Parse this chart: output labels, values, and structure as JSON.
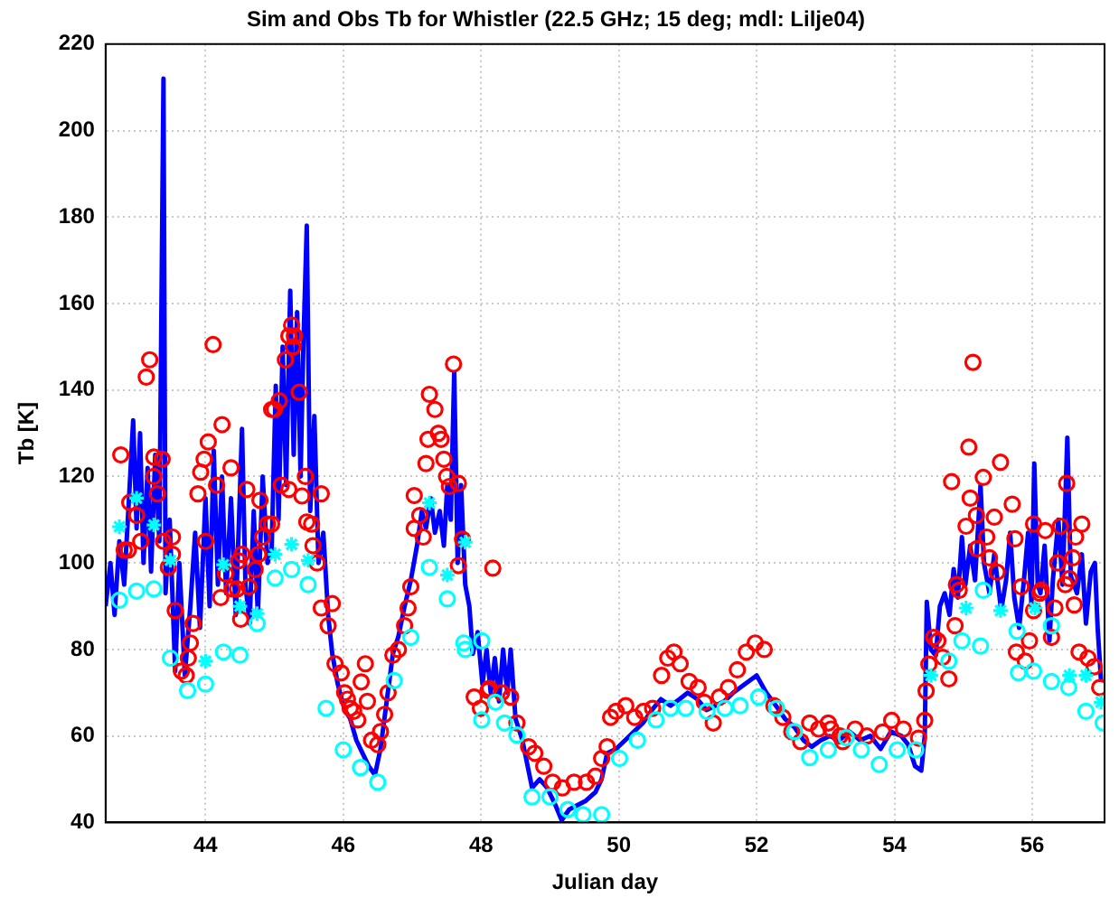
{
  "chart_data": {
    "type": "scatter",
    "title": "Sim and Obs Tb for Whistler (22.5 GHz; 15 deg; mdl: Lilje04)",
    "xlabel": "Julian day",
    "ylabel": "Tb [K]",
    "xlim": [
      42.55,
      57.05
    ],
    "xticks": [
      44,
      46,
      48,
      50,
      52,
      54,
      56
    ],
    "ylim": [
      40,
      220
    ],
    "yticks": [
      40,
      60,
      80,
      100,
      120,
      140,
      160,
      180,
      200,
      220
    ],
    "grid": true,
    "legend": false,
    "series": [
      {
        "type": "line",
        "color": "#0000ff",
        "line_style": "solid",
        "marker": "none",
        "x": [
          42.55,
          42.62,
          42.68,
          42.75,
          42.82,
          42.9,
          42.95,
          43.0,
          43.05,
          43.1,
          43.16,
          43.21,
          43.27,
          43.33,
          43.39,
          43.42,
          43.48,
          43.56,
          43.62,
          43.7,
          43.78,
          43.85,
          43.92,
          44.0,
          44.06,
          44.12,
          44.18,
          44.24,
          44.3,
          44.37,
          44.44,
          44.53,
          44.58,
          44.64,
          44.7,
          44.76,
          44.83,
          44.9,
          44.96,
          45.02,
          45.06,
          45.12,
          45.17,
          45.23,
          45.28,
          45.33,
          45.38,
          45.42,
          45.47,
          45.52,
          45.58,
          45.64,
          45.71,
          45.78,
          45.84,
          45.92,
          46.02,
          46.1,
          46.19,
          46.28,
          46.37,
          46.46,
          46.54,
          46.63,
          46.72,
          46.8,
          46.89,
          46.98,
          47.07,
          47.14,
          47.2,
          47.27,
          47.33,
          47.4,
          47.46,
          47.51,
          47.56,
          47.61,
          47.66,
          47.71,
          47.77,
          47.83,
          47.88,
          47.95,
          48.02,
          48.08,
          48.14,
          48.2,
          48.26,
          48.32,
          48.38,
          48.43,
          48.5,
          48.6,
          48.74,
          48.85,
          48.96,
          49.08,
          49.17,
          49.28,
          49.4,
          49.52,
          49.66,
          49.75,
          49.83,
          49.96,
          50.09,
          50.22,
          50.35,
          50.48,
          50.61,
          50.75,
          50.88,
          51.0,
          51.14,
          51.27,
          51.4,
          51.53,
          51.66,
          51.83,
          52.0,
          52.14,
          52.28,
          52.41,
          52.55,
          52.68,
          52.8,
          52.93,
          53.06,
          53.2,
          53.35,
          53.5,
          53.65,
          53.8,
          53.95,
          54.1,
          54.2,
          54.3,
          54.39,
          54.44,
          54.47,
          54.53,
          54.6,
          54.66,
          54.73,
          54.8,
          54.86,
          54.92,
          54.98,
          55.03,
          55.1,
          55.17,
          55.25,
          55.3,
          55.38,
          55.45,
          55.55,
          55.62,
          55.68,
          55.74,
          55.81,
          55.88,
          55.94,
          55.99,
          56.03,
          56.08,
          56.12,
          56.18,
          56.25,
          56.3,
          56.38,
          56.44,
          56.51,
          56.56,
          56.65,
          56.72,
          56.78,
          56.85,
          56.91,
          56.95,
          57.0
        ],
        "values": [
          90,
          100,
          88,
          105,
          95,
          118,
          133,
          108,
          130,
          100,
          122,
          98,
          125,
          105,
          212,
          93,
          110,
          75,
          100,
          74,
          90,
          107,
          85,
          115,
          90,
          126,
          95,
          120,
          93,
          115,
          88,
          131,
          95,
          86,
          112,
          88,
          120,
          100,
          103,
          141,
          110,
          150,
          118,
          163,
          125,
          158,
          120,
          150,
          178,
          112,
          134,
          100,
          107,
          88,
          79,
          72,
          66,
          64,
          59,
          56,
          53,
          51,
          57,
          68,
          79,
          83,
          90,
          96,
          104,
          112,
          108,
          115,
          107,
          112,
          104,
          118,
          110,
          144,
          100,
          118,
          95,
          90,
          79,
          84,
          72,
          80,
          70,
          78,
          68,
          80,
          70,
          80,
          64,
          59,
          48,
          50,
          48,
          44,
          40.5,
          43,
          44,
          45,
          47,
          50,
          56,
          57,
          59,
          61,
          63,
          66,
          68.5,
          67,
          68.5,
          70,
          68.5,
          66,
          67,
          68,
          70,
          72,
          74,
          70,
          67,
          64,
          62,
          59,
          57.5,
          59,
          60,
          59,
          61,
          59,
          60,
          57,
          61,
          60,
          58,
          53,
          52,
          60,
          91,
          80,
          78.6,
          90,
          93,
          88,
          98.6,
          92,
          106,
          95,
          104,
          96,
          118,
          100,
          93,
          102,
          89,
          96,
          107,
          92,
          85,
          96,
          107,
          90,
          123,
          95,
          93,
          104,
          82,
          96,
          110,
          95,
          129,
          97,
          93,
          102,
          86,
          98,
          100,
          85,
          72.5
        ]
      },
      {
        "type": "scatter",
        "color": "#ff0000",
        "marker": "circle",
        "x": [
          42.77,
          42.82,
          42.88,
          42.9,
          43.0,
          43.06,
          43.14,
          43.19,
          43.25,
          43.25,
          43.3,
          43.37,
          43.39,
          43.46,
          43.52,
          43.52,
          43.56,
          43.65,
          43.72,
          43.75,
          43.78,
          43.82,
          43.89,
          43.93,
          43.98,
          44.0,
          44.04,
          44.11,
          44.16,
          44.22,
          44.24,
          44.29,
          44.37,
          44.39,
          44.46,
          44.48,
          44.51,
          44.53,
          44.6,
          44.63,
          44.72,
          44.77,
          44.79,
          44.83,
          44.9,
          44.96,
          44.96,
          45.0,
          45.07,
          45.1,
          45.16,
          45.21,
          45.25,
          45.27,
          45.29,
          45.36,
          45.21,
          45.45,
          45.4,
          45.47,
          45.54,
          45.56,
          45.62,
          45.68,
          45.68,
          45.78,
          45.84,
          45.88,
          45.97,
          46.02,
          46.06,
          46.1,
          46.15,
          46.21,
          46.26,
          46.32,
          46.35,
          46.41,
          46.5,
          46.54,
          46.6,
          46.65,
          46.72,
          46.8,
          46.89,
          46.94,
          46.98,
          47.03,
          47.03,
          47.11,
          47.16,
          47.2,
          47.23,
          47.25,
          47.33,
          47.38,
          47.42,
          47.46,
          47.5,
          47.54,
          47.6,
          47.67,
          47.67,
          47.73,
          47.9,
          47.99,
          48.1,
          48.17,
          48.12,
          48.3,
          48.43,
          48.52,
          48.69,
          48.78,
          48.91,
          49.04,
          49.18,
          49.35,
          49.53,
          49.66,
          49.75,
          49.83,
          49.88,
          49.96,
          50.1,
          50.23,
          50.36,
          50.49,
          50.62,
          50.71,
          50.8,
          50.89,
          51.02,
          51.15,
          51.24,
          51.37,
          51.46,
          51.59,
          51.72,
          51.85,
          51.98,
          52.11,
          52.25,
          52.38,
          52.51,
          52.64,
          52.77,
          52.9,
          53.04,
          53.21,
          53.08,
          53.25,
          53.43,
          53.6,
          53.83,
          53.96,
          54.13,
          54.35,
          54.44,
          54.46,
          54.5,
          54.57,
          54.63,
          54.7,
          54.79,
          54.83,
          54.88,
          54.9,
          54.94,
          55.04,
          55.08,
          55.1,
          55.14,
          55.19,
          55.2,
          55.29,
          55.34,
          55.38,
          55.45,
          55.49,
          55.54,
          55.71,
          55.75,
          55.77,
          55.84,
          55.9,
          55.96,
          56.02,
          56.02,
          56.11,
          56.13,
          56.19,
          56.28,
          56.33,
          56.37,
          56.41,
          56.48,
          56.5,
          56.54,
          56.59,
          56.61,
          56.63,
          56.72,
          56.68,
          56.81,
          56.9,
          56.98
        ],
        "values": [
          125,
          103,
          103,
          114,
          111,
          105,
          143,
          147,
          124.5,
          120,
          116,
          124,
          105,
          99,
          106,
          102,
          89,
          75,
          74,
          78,
          81.5,
          86,
          116,
          121,
          124,
          105,
          128,
          150.5,
          118,
          92,
          132,
          97.5,
          122,
          94,
          94,
          100.5,
          87,
          102,
          117,
          94.5,
          98.5,
          102,
          114.5,
          106,
          109,
          109,
          135.5,
          135.5,
          137.5,
          118,
          147,
          152.5,
          155,
          150,
          152.5,
          139.5,
          117,
          120,
          115.5,
          109.5,
          109,
          104,
          100,
          116,
          89.6,
          85.5,
          90.6,
          76.7,
          74.6,
          70,
          68.5,
          66.4,
          65.7,
          63.7,
          72.5,
          76.7,
          68,
          59,
          58,
          61,
          65,
          70,
          78.7,
          80,
          85.5,
          89.6,
          94.5,
          108,
          115.6,
          111,
          106,
          123,
          128.6,
          139,
          135.5,
          130,
          128.6,
          124,
          120,
          117.7,
          146,
          118.4,
          99.4,
          105.5,
          69,
          66.4,
          70.5,
          98.8,
          71,
          70,
          69,
          63,
          57.5,
          56,
          53,
          49.3,
          48,
          49.3,
          49.3,
          50.7,
          54.8,
          57.5,
          64.3,
          65.7,
          67,
          64.3,
          65.7,
          66.4,
          74,
          78,
          79.4,
          76.7,
          72.6,
          71.2,
          67.8,
          63,
          69,
          71.2,
          75.3,
          79.4,
          81.5,
          80,
          67,
          64.3,
          61,
          58.7,
          63,
          61.6,
          63,
          60,
          61.6,
          58.7,
          61.6,
          60,
          60.9,
          63.6,
          61.6,
          59.5,
          63.6,
          70.4,
          76.6,
          82.8,
          82,
          78.2,
          73.2,
          118.8,
          85.5,
          95,
          93.7,
          108.5,
          126.8,
          115,
          146.4,
          111,
          103.3,
          119.8,
          106,
          101.2,
          110.6,
          97.9,
          123.3,
          113.6,
          105.6,
          79.4,
          94.5,
          77.3,
          82,
          109,
          89,
          93,
          93.7,
          107.5,
          82.8,
          89.6,
          100,
          108.5,
          95,
          118.4,
          96.4,
          101.2,
          90.3,
          106,
          109,
          79.4,
          78,
          76,
          71.2
        ]
      },
      {
        "type": "scatter",
        "color": "#00ffff",
        "marker": "circle",
        "x": [
          42.75,
          43.0,
          43.25,
          43.49,
          44.0,
          44.26,
          44.5,
          44.75,
          45.01,
          45.25,
          45.49,
          47.25,
          47.51,
          47.77,
          48.01,
          54.98,
          55.25,
          55.8,
          56.02,
          56.28,
          56.53,
          56.78,
          57.03
        ],
        "values": [
          91.4,
          93.5,
          94,
          78,
          72,
          79.4,
          78.7,
          86,
          96.5,
          98.5,
          95,
          99,
          91.7,
          80,
          63.7,
          82,
          80.8,
          74.6,
          75,
          72.6,
          71.2,
          65.7,
          63
        ]
      },
      {
        "type": "scatter",
        "color": "#00ffff",
        "marker": "cross",
        "x": [
          42.75,
          43.0,
          43.25,
          43.49,
          44.0,
          44.26,
          44.5,
          44.75,
          45.01,
          45.25,
          45.49,
          47.25,
          47.51,
          47.77,
          54.53,
          55.04,
          55.54,
          56.04,
          56.54,
          56.78,
          57.0
        ],
        "values": [
          108.4,
          115,
          108.8,
          100.6,
          77.3,
          99.6,
          90,
          88.3,
          102,
          104.3,
          100.6,
          113.9,
          97.2,
          104.8,
          74,
          89.6,
          89,
          89.6,
          74,
          74,
          67.8
        ]
      },
      {
        "type": "scatter",
        "color": "#00ffff",
        "marker": "circle",
        "x": [
          43.74,
          45.75,
          46.0,
          46.25,
          46.5,
          46.74,
          46.98,
          47.75,
          48.01,
          48.21,
          48.34,
          48.52,
          48.74,
          49.0,
          49.26,
          49.48,
          49.75,
          50.01,
          50.27,
          50.54,
          50.75,
          50.97,
          51.28,
          51.54,
          51.76,
          52.03,
          52.29,
          52.55,
          52.77,
          53.04,
          53.3,
          53.52,
          53.78,
          54.04,
          54.31,
          54.79,
          55.29,
          55.78,
          56.28
        ],
        "values": [
          70.5,
          66.4,
          56.8,
          52.7,
          49.3,
          72.8,
          82.8,
          81.5,
          82,
          67.8,
          63,
          60.2,
          45.9,
          45.9,
          43,
          41.8,
          41.8,
          54.8,
          59,
          63.7,
          66.4,
          66.4,
          65.7,
          66.4,
          67,
          69,
          66.4,
          61,
          55,
          56.8,
          59.6,
          56.8,
          53.4,
          56.8,
          56.8,
          77.3,
          93.7,
          84.2,
          85.5
        ]
      }
    ]
  }
}
